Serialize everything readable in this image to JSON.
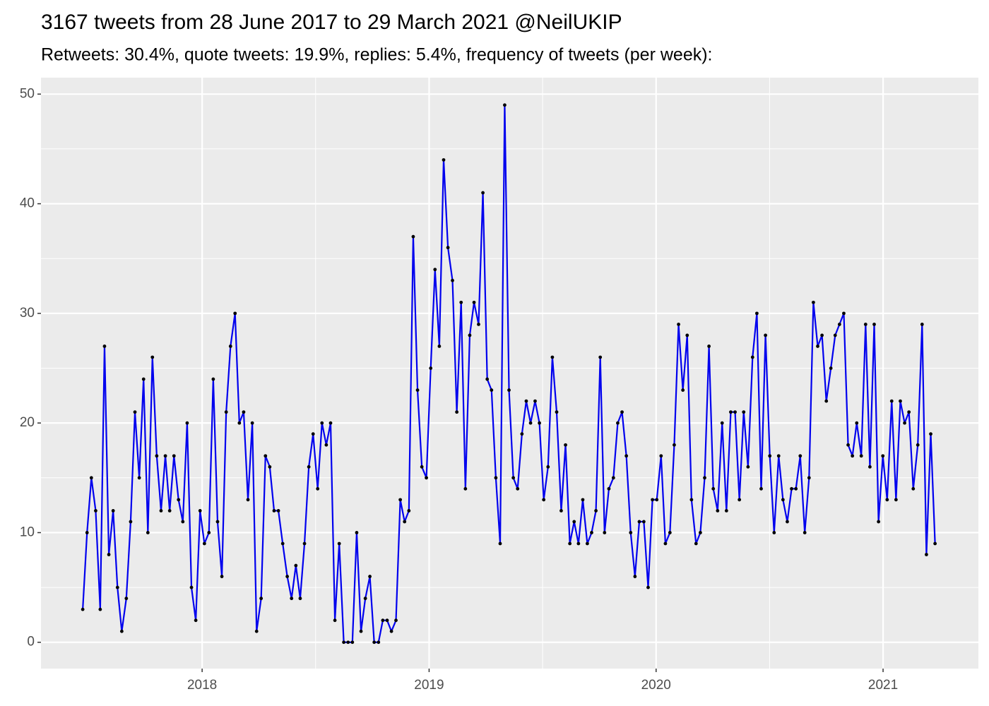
{
  "chart_data": {
    "type": "line",
    "title": "3167 tweets from 28 June 2017 to 29 March 2021 @NeilUKIP",
    "subtitle": "Retweets: 30.4%, quote tweets: 19.9%, replies: 5.4%, frequency of tweets (per week):",
    "x": [
      2017.474,
      2017.493,
      2017.512,
      2017.531,
      2017.551,
      2017.57,
      2017.589,
      2017.608,
      2017.627,
      2017.646,
      2017.666,
      2017.685,
      2017.704,
      2017.723,
      2017.742,
      2017.761,
      2017.781,
      2017.8,
      2017.819,
      2017.838,
      2017.857,
      2017.876,
      2017.896,
      2017.915,
      2017.934,
      2017.953,
      2017.972,
      2017.991,
      2018.01,
      2018.03,
      2018.049,
      2018.068,
      2018.087,
      2018.106,
      2018.125,
      2018.145,
      2018.164,
      2018.183,
      2018.202,
      2018.221,
      2018.24,
      2018.26,
      2018.279,
      2018.298,
      2018.317,
      2018.336,
      2018.355,
      2018.375,
      2018.394,
      2018.413,
      2018.432,
      2018.451,
      2018.47,
      2018.489,
      2018.509,
      2018.528,
      2018.547,
      2018.566,
      2018.585,
      2018.604,
      2018.624,
      2018.643,
      2018.662,
      2018.681,
      2018.7,
      2018.719,
      2018.739,
      2018.758,
      2018.777,
      2018.796,
      2018.815,
      2018.834,
      2018.854,
      2018.873,
      2018.892,
      2018.911,
      2018.93,
      2018.949,
      2018.968,
      2018.988,
      2019.007,
      2019.026,
      2019.045,
      2019.064,
      2019.083,
      2019.103,
      2019.122,
      2019.141,
      2019.16,
      2019.179,
      2019.198,
      2019.218,
      2019.237,
      2019.256,
      2019.275,
      2019.294,
      2019.313,
      2019.333,
      2019.352,
      2019.371,
      2019.39,
      2019.409,
      2019.428,
      2019.447,
      2019.467,
      2019.486,
      2019.505,
      2019.524,
      2019.543,
      2019.562,
      2019.582,
      2019.601,
      2019.62,
      2019.639,
      2019.658,
      2019.677,
      2019.697,
      2019.716,
      2019.735,
      2019.754,
      2019.773,
      2019.792,
      2019.812,
      2019.831,
      2019.85,
      2019.869,
      2019.888,
      2019.907,
      2019.926,
      2019.946,
      2019.965,
      2019.984,
      2020.003,
      2020.022,
      2020.041,
      2020.061,
      2020.08,
      2020.099,
      2020.118,
      2020.137,
      2020.156,
      2020.176,
      2020.195,
      2020.214,
      2020.233,
      2020.252,
      2020.271,
      2020.291,
      2020.31,
      2020.329,
      2020.348,
      2020.367,
      2020.386,
      2020.405,
      2020.425,
      2020.444,
      2020.463,
      2020.482,
      2020.501,
      2020.52,
      2020.54,
      2020.559,
      2020.578,
      2020.597,
      2020.616,
      2020.635,
      2020.655,
      2020.674,
      2020.693,
      2020.712,
      2020.731,
      2020.75,
      2020.77,
      2020.789,
      2020.808,
      2020.827,
      2020.846,
      2020.865,
      2020.884,
      2020.904,
      2020.923,
      2020.942,
      2020.961,
      2020.98,
      2020.999,
      2021.018,
      2021.038,
      2021.057,
      2021.076,
      2021.095,
      2021.114,
      2021.133,
      2021.153,
      2021.172,
      2021.191,
      2021.21,
      2021.229
    ],
    "series": [
      {
        "color": "#0000ee",
        "values": [
          3,
          10,
          15,
          12,
          3,
          27,
          8,
          12,
          5,
          1,
          4,
          11,
          21,
          15,
          24,
          10,
          26,
          17,
          12,
          17,
          12,
          17,
          13,
          11,
          20,
          5,
          2,
          12,
          9,
          10,
          24,
          11,
          6,
          21,
          27,
          30,
          20,
          21,
          13,
          20,
          1,
          4,
          17,
          16,
          12,
          12,
          9,
          6,
          4,
          7,
          4,
          9,
          16,
          19,
          14,
          20,
          18,
          20,
          2,
          9,
          0,
          0,
          0,
          10,
          1,
          4,
          6,
          0,
          0,
          2,
          2,
          1,
          2,
          13,
          11,
          12,
          37,
          23,
          16,
          15,
          25,
          34,
          27,
          44,
          36,
          33,
          21,
          31,
          14,
          28,
          31,
          29,
          41,
          24,
          23,
          15,
          9,
          49,
          23,
          15,
          14,
          19,
          22,
          20,
          22,
          20,
          13,
          16,
          26,
          21,
          12,
          18,
          9,
          11,
          9,
          13,
          9,
          10,
          12,
          26,
          10,
          14,
          15,
          20,
          21,
          17,
          10,
          6,
          11,
          11,
          5,
          13,
          13,
          17,
          9,
          10,
          18,
          29,
          23,
          28,
          13,
          9,
          10,
          15,
          27,
          14,
          12,
          20,
          12,
          21,
          21,
          13,
          21,
          16,
          26,
          30,
          14,
          28,
          17,
          10,
          17,
          13,
          11,
          14,
          14,
          17,
          10,
          15,
          31,
          27,
          28,
          22,
          25,
          28,
          29,
          30,
          18,
          17,
          20,
          17,
          29,
          16,
          29,
          11,
          17,
          13,
          22,
          13,
          22,
          20,
          21,
          14,
          18,
          29,
          8,
          19,
          9
        ]
      }
    ],
    "point_color": "#000000",
    "xlim": [
      2017.29,
      2021.42
    ],
    "xticks": [
      2018,
      2019,
      2020,
      2021
    ],
    "ylim": [
      -2.4,
      51.5
    ],
    "yticks": [
      0,
      10,
      20,
      30,
      40,
      50
    ],
    "grid": true
  }
}
